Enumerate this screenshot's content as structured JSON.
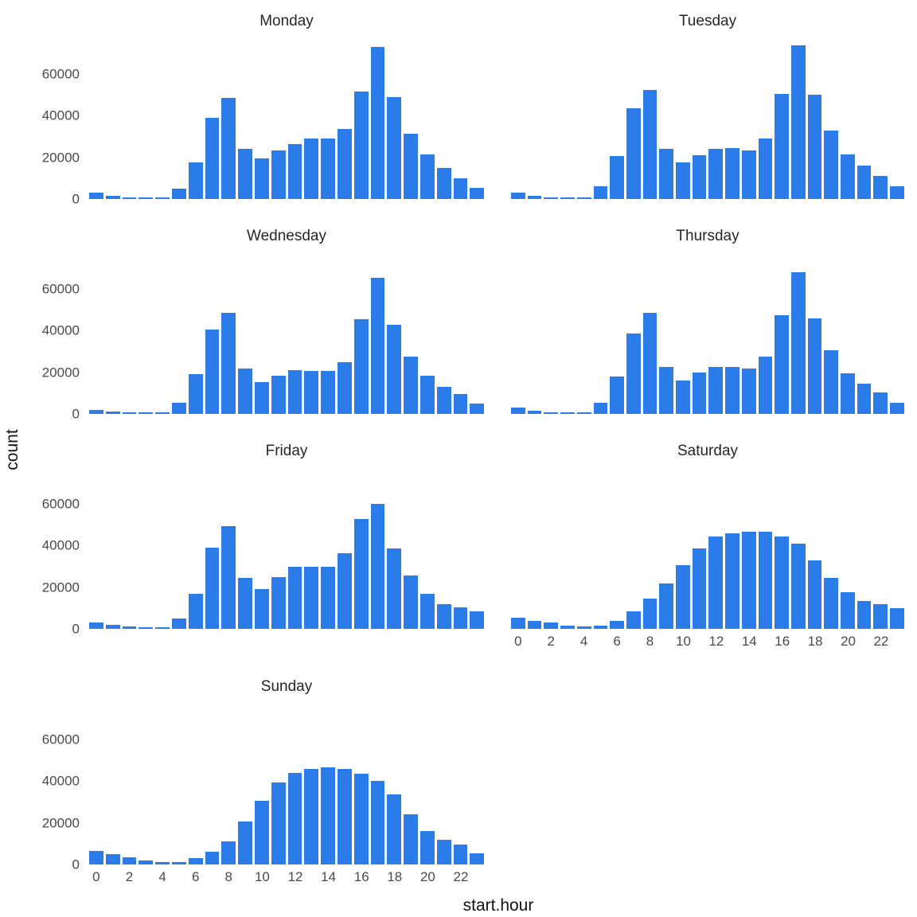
{
  "figure": {
    "bar_color": "#2b7ce9",
    "background": "#ffffff",
    "axis_text_color": "#4a4a4a",
    "facet_title_color": "#262626"
  },
  "chart_data": {
    "type": "bar",
    "layout": "facet-wrap-2col",
    "title": "",
    "xlabel": "start.hour",
    "ylabel": "count",
    "ylim": [
      0,
      75000
    ],
    "grid": false,
    "x": [
      0,
      1,
      2,
      3,
      4,
      5,
      6,
      7,
      8,
      9,
      10,
      11,
      12,
      13,
      14,
      15,
      16,
      17,
      18,
      19,
      20,
      21,
      22,
      23
    ],
    "x_tick_labels": [
      "0",
      "2",
      "4",
      "6",
      "8",
      "10",
      "12",
      "14",
      "16",
      "18",
      "20",
      "22"
    ],
    "y_ticks": [
      0,
      20000,
      40000,
      60000
    ],
    "y_tick_labels": [
      "0",
      "20000",
      "40000",
      "60000"
    ],
    "series": [
      {
        "name": "Monday",
        "show_y_axis": true,
        "show_x_axis": false,
        "values": [
          3000,
          1500,
          900,
          500,
          800,
          5000,
          17500,
          39000,
          48500,
          24000,
          19500,
          23500,
          26500,
          29000,
          29000,
          33500,
          51500,
          73000,
          49000,
          31500,
          21500,
          15000,
          10000,
          5500
        ]
      },
      {
        "name": "Tuesday",
        "show_y_axis": false,
        "show_x_axis": false,
        "values": [
          3000,
          1600,
          900,
          500,
          800,
          6000,
          20500,
          43500,
          52500,
          24000,
          17500,
          21000,
          24000,
          24500,
          23500,
          29000,
          50500,
          74000,
          50000,
          33000,
          21500,
          16000,
          11000,
          6000
        ]
      },
      {
        "name": "Wednesday",
        "show_y_axis": true,
        "show_x_axis": false,
        "values": [
          2000,
          1100,
          700,
          400,
          700,
          5500,
          19000,
          40500,
          48500,
          22000,
          15500,
          18500,
          21000,
          20500,
          20500,
          25000,
          45500,
          65500,
          43000,
          27500,
          18500,
          13000,
          9500,
          5000
        ]
      },
      {
        "name": "Thursday",
        "show_y_axis": false,
        "show_x_axis": false,
        "values": [
          3000,
          1500,
          800,
          400,
          700,
          5500,
          18000,
          38500,
          48500,
          22500,
          16000,
          20000,
          22500,
          22500,
          22000,
          27500,
          47500,
          68000,
          46000,
          30500,
          19500,
          14500,
          10500,
          5500
        ]
      },
      {
        "name": "Friday",
        "show_y_axis": true,
        "show_x_axis": false,
        "values": [
          3000,
          1800,
          1000,
          600,
          800,
          5000,
          17000,
          39000,
          49500,
          24500,
          19000,
          25000,
          30000,
          30000,
          30000,
          36500,
          53000,
          60000,
          38500,
          25500,
          17000,
          12000,
          10500,
          8500
        ]
      },
      {
        "name": "Saturday",
        "show_y_axis": false,
        "show_x_axis": true,
        "values": [
          5500,
          4000,
          3000,
          1500,
          1000,
          1500,
          4000,
          8500,
          14500,
          22000,
          30500,
          38500,
          44500,
          46000,
          46500,
          46500,
          44500,
          41000,
          33000,
          24500,
          17500,
          13500,
          12000,
          10000
        ]
      },
      {
        "name": "Sunday",
        "show_y_axis": true,
        "show_x_axis": true,
        "values": [
          6500,
          5000,
          3500,
          2000,
          1200,
          1200,
          3000,
          6000,
          11000,
          20500,
          30500,
          39500,
          44000,
          46000,
          46500,
          46000,
          43500,
          40000,
          33500,
          24000,
          16000,
          12000,
          9500,
          5500
        ]
      }
    ]
  }
}
